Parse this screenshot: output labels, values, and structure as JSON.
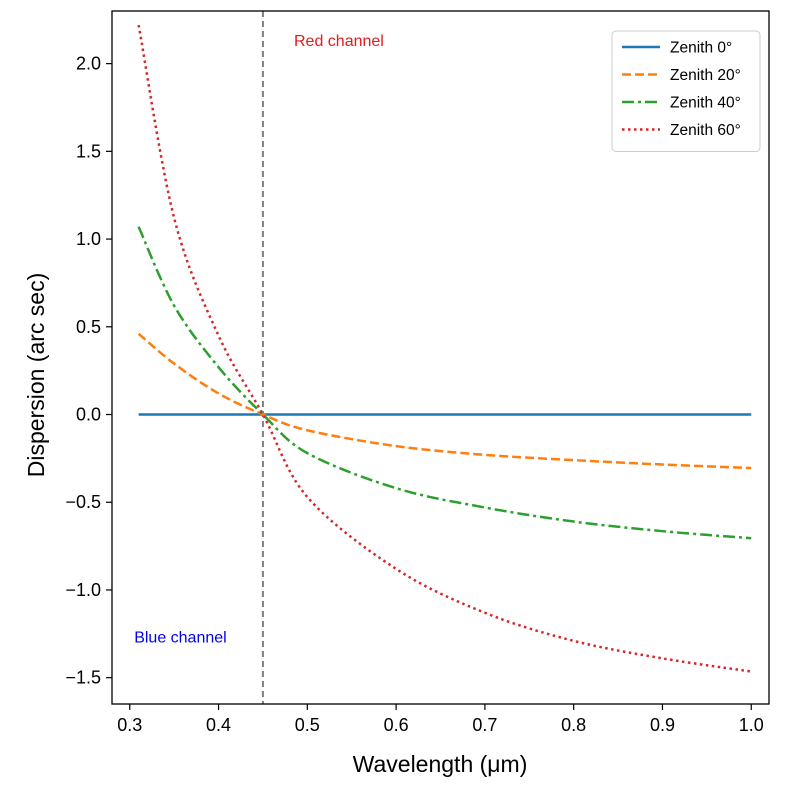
{
  "chart_data": {
    "type": "line",
    "xlabel": "Wavelength (μm)",
    "ylabel": "Dispersion (arc sec)",
    "xlim": [
      0.28,
      1.02
    ],
    "ylim": [
      -1.65,
      2.3
    ],
    "xticks": [
      0.3,
      0.4,
      0.5,
      0.6,
      0.7,
      0.8,
      0.9,
      1.0
    ],
    "xtick_labels": [
      "0.3",
      "0.4",
      "0.5",
      "0.6",
      "0.7",
      "0.8",
      "0.9",
      "1.0"
    ],
    "yticks": [
      -1.5,
      -1.0,
      -0.5,
      0.0,
      0.5,
      1.0,
      1.5,
      2.0
    ],
    "ytick_labels": [
      "−1.5",
      "−1.0",
      "−0.5",
      "0.0",
      "0.5",
      "1.0",
      "1.5",
      "2.0"
    ],
    "grid": false,
    "legend_position": "top-right",
    "reference_line": {
      "x": 0.45,
      "style": "dashed",
      "color": "#808080"
    },
    "annotations": [
      {
        "text": "Red channel",
        "x": 0.485,
        "y": 2.1,
        "color": "#e41a1c"
      },
      {
        "text": "Blue channel",
        "x": 0.305,
        "y": -1.3,
        "color": "#0000ee"
      }
    ],
    "x": [
      0.31,
      0.35,
      0.4,
      0.45,
      0.5,
      0.6,
      0.7,
      0.8,
      0.9,
      1.0
    ],
    "series": [
      {
        "name": "Zenith 0°",
        "color": "#1f77b4",
        "dash": "solid",
        "values": [
          0.0,
          0.0,
          0.0,
          0.0,
          0.0,
          0.0,
          0.0,
          0.0,
          0.0,
          0.0
        ]
      },
      {
        "name": "Zenith 20°",
        "color": "#ff7f0e",
        "dash": "dashed",
        "values": [
          0.46,
          0.29,
          0.12,
          0.0,
          -0.09,
          -0.18,
          -0.23,
          -0.26,
          -0.285,
          -0.305
        ]
      },
      {
        "name": "Zenith 40°",
        "color": "#2ca02c",
        "dash": "dashdot",
        "values": [
          1.07,
          0.62,
          0.27,
          0.0,
          -0.22,
          -0.42,
          -0.53,
          -0.61,
          -0.665,
          -0.705
        ]
      },
      {
        "name": "Zenith 60°",
        "color": "#d62728",
        "dash": "dotted",
        "values": [
          2.22,
          1.12,
          0.45,
          0.0,
          -0.47,
          -0.88,
          -1.13,
          -1.29,
          -1.39,
          -1.465
        ]
      }
    ]
  }
}
